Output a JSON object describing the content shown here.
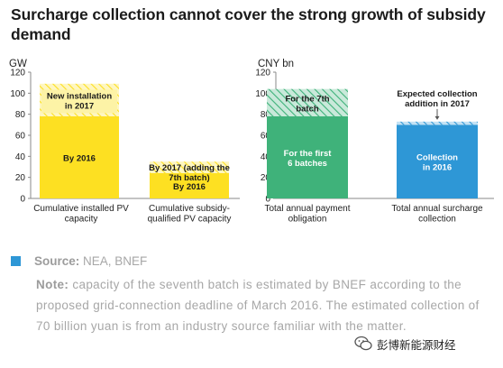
{
  "title": "Surcharge collection cannot cover the strong growth of subsidy demand",
  "colors": {
    "yellow": "#fde022",
    "yellow_hatch_bg": "#fdf6c4",
    "green": "#3fb27a",
    "green_hatch_bg": "#cfe9d6",
    "blue": "#2e97d6",
    "source_square": "#2e97d6"
  },
  "chart_data": [
    {
      "type": "bar",
      "stacked": true,
      "unit_label": "GW",
      "ylim": [
        0,
        120
      ],
      "yticks": [
        0,
        20,
        40,
        60,
        80,
        100,
        120
      ],
      "grid": false,
      "categories": [
        "Cumulative installed  PV capacity",
        "Cumulative subsidy-qualified PV capacity"
      ],
      "bars": [
        {
          "category_lines": [
            "Cumulative installed  PV",
            "capacity"
          ],
          "segments": [
            {
              "label_lines": [
                "By 2016"
              ],
              "value": 78,
              "style": "solid",
              "color": "#fde022"
            },
            {
              "label_lines": [
                "New installation",
                "in 2017"
              ],
              "value": 31,
              "style": "hatch",
              "color": "#fde022"
            }
          ]
        },
        {
          "category_lines": [
            "Cumulative subsidy-",
            "qualified PV capacity"
          ],
          "segments": [
            {
              "label_lines": [
                "By 2016"
              ],
              "value": 24,
              "style": "solid",
              "color": "#fde022"
            },
            {
              "label_lines": [
                "By 2017 (adding the",
                "7th batch)"
              ],
              "value": 11,
              "style": "hatch",
              "color": "#fde022"
            }
          ]
        }
      ]
    },
    {
      "type": "bar",
      "stacked": true,
      "unit_label": "CNY bn",
      "ylim": [
        0,
        120
      ],
      "yticks": [
        0,
        20,
        40,
        60,
        80,
        100,
        120
      ],
      "grid": false,
      "categories": [
        "Total annual payment obligation",
        "Total annual surcharge collection"
      ],
      "bars": [
        {
          "category_lines": [
            "Total annual payment",
            "obligation"
          ],
          "segments": [
            {
              "label_lines": [
                "For the first",
                "6 batches"
              ],
              "value": 78,
              "style": "solid",
              "color": "#3fb27a"
            },
            {
              "label_lines": [
                "For the 7th",
                "batch"
              ],
              "value": 26,
              "style": "hatch",
              "color": "#3fb27a"
            }
          ]
        },
        {
          "category_lines": [
            "Total annual surcharge",
            "collection"
          ],
          "segments": [
            {
              "label_lines": [
                "Collection",
                "in 2016"
              ],
              "value": 70,
              "style": "solid",
              "color": "#2e97d6"
            },
            {
              "label_lines": [
                "Expected collection",
                "addition in 2017"
              ],
              "value": 3,
              "style": "hatch",
              "color": "#2e97d6",
              "label_position": "above"
            }
          ]
        }
      ]
    }
  ],
  "footer": {
    "source_label": "Source:",
    "source_text": "NEA, BNEF",
    "note_label": "Note:",
    "note_text": "capacity of the seventh batch is estimated by BNEF according to the proposed grid-connection deadline of March 2016. The estimated collection of 70 billion yuan is from an industry source familiar with the matter."
  },
  "watermark": {
    "text": "彭博新能源财经",
    "icon": "wechat-logo-icon"
  }
}
